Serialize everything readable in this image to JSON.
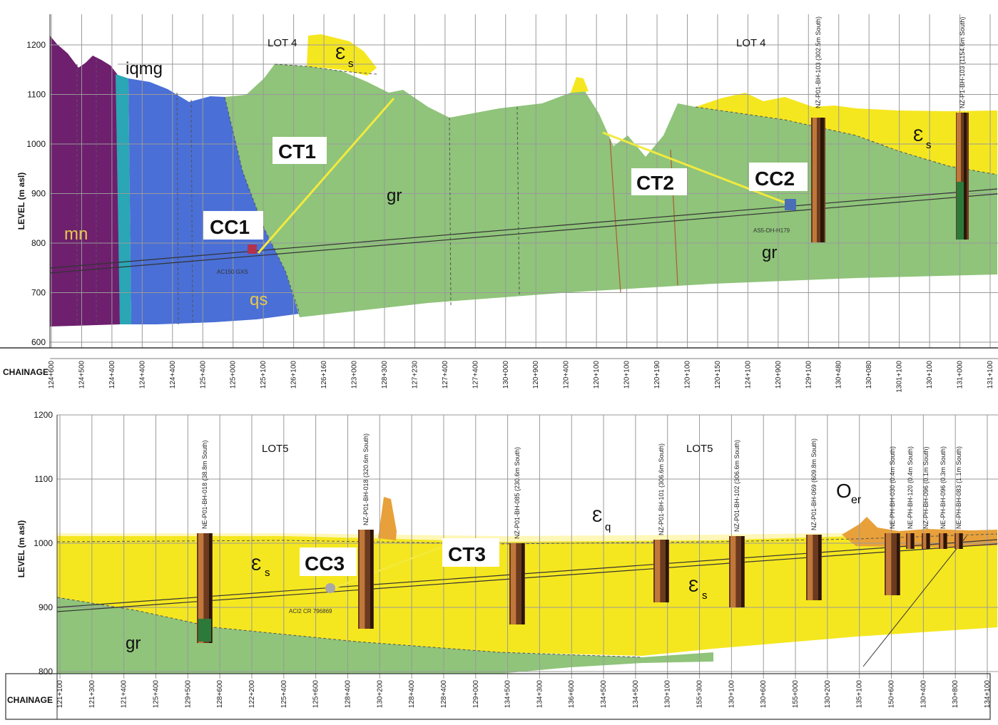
{
  "top_panel": {
    "y_axis_title": "LEVEL (m asl)",
    "y_ticks": [
      "1200",
      "1100",
      "1000",
      "900",
      "800",
      "700",
      "600"
    ],
    "chainage_label": "CHAINAGE",
    "chainage_ticks": [
      "124+600",
      "124+500",
      "124+400",
      "124+400",
      "124+400",
      "125+400",
      "125+000",
      "125+100",
      "126+100",
      "126+160",
      "123+000",
      "128+300",
      "127+230",
      "127+400",
      "127+400",
      "130+000",
      "120+900",
      "120+400",
      "120+100",
      "120+100",
      "120+190",
      "120+100",
      "120+150",
      "124+100",
      "120+900",
      "129+100",
      "130+480",
      "130+080",
      "1301+100",
      "130+100",
      "131+000",
      "131+100"
    ],
    "lots": [
      "LOT 4",
      "LOT 4"
    ],
    "units": {
      "mn": "mn",
      "iqmg": "iqmg",
      "qs": "qs",
      "gr1": "gr",
      "gr2": "gr",
      "es1": "Ɛ",
      "es1_sub": "s",
      "es2": "Ɛ",
      "es2_sub": "s"
    },
    "callouts": {
      "cc1": "CC1",
      "ct1": "CT1",
      "cc2": "CC2",
      "ct2": "CT2"
    },
    "small_labels": {
      "cc1": "AC150 GXS",
      "cc2": "AS5-DH-H179"
    },
    "boreholes": [
      "NZ-P01-BH-103 (302.5m South)",
      "NZ-P1-BH-103 (1154.6m South)"
    ]
  },
  "bottom_panel": {
    "y_axis_title": "LEVEL (m asl)",
    "y_ticks": [
      "1200",
      "1100",
      "1000",
      "900",
      "800"
    ],
    "chainage_label": "CHAINAGE",
    "chainage_ticks": [
      "121+100",
      "121+300",
      "121+400",
      "125+400",
      "129+500",
      "128+600",
      "122+200",
      "125+400",
      "125+600",
      "128+400",
      "130+200",
      "128+400",
      "128+400",
      "129+000",
      "134+500",
      "134+300",
      "136+600",
      "134+500",
      "134+500",
      "130+100",
      "155+300",
      "130+100",
      "130+600",
      "155+000",
      "130+200",
      "135+100",
      "150+600",
      "130+400",
      "130+800",
      "134+100"
    ],
    "lots": [
      "LOT5",
      "LOT5"
    ],
    "units": {
      "gr": "gr",
      "es1": "Ɛ",
      "es1_sub": "s",
      "es2": "Ɛ",
      "es2_sub": "s",
      "eq": "Ɛ",
      "eq_sub": "q",
      "oer": "O",
      "oer_sub": "er"
    },
    "callouts": {
      "cc3": "CC3",
      "ct3": "CT3"
    },
    "small_labels": {
      "cc3": "ACI2 CR 796869"
    },
    "boreholes": [
      "NE-P01-BH-018 (38.8m South)",
      "NZ-P01-BH-018 (320.6m South)",
      "NZ-P01-BH-085 (230.6m South)",
      "NZ-P01-BH-101 (306.6m South)",
      "NZ-P01-BH-102 (306.6m South)",
      "NZ-P01-BH-069 (609.8m South)",
      "NE-PH-BH-030 (0.4m South)",
      "NE-PH-BH-120 (0.4m South)",
      "NZ-PH-BH-096 (0.1m South)",
      "NE-PH-BH-096 (0.3m South)",
      "NE-PH-BH-083 (1.1m South)"
    ]
  },
  "colors": {
    "purple": "#6e1f6e",
    "blue": "#4a6fd6",
    "teal": "#2aa6b5",
    "green": "#8fc47a",
    "yellow": "#f5e71f",
    "orange": "#e8a13a",
    "pink_light": "#ffffff"
  }
}
